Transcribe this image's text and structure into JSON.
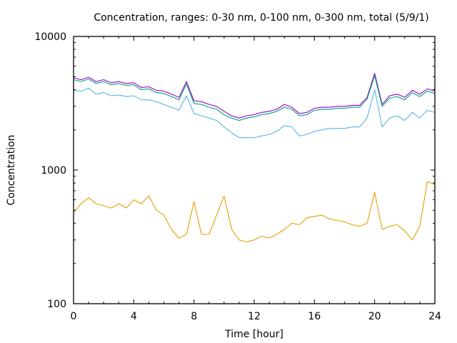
{
  "chart_data": {
    "type": "line",
    "title": "Concentration, ranges: 0-30 nm, 0-100 nm, 0-300 nm, total (5/9/1)",
    "xlabel": "Time [hour]",
    "ylabel": "Concentration",
    "xlim": [
      0,
      24
    ],
    "ylim": [
      100,
      10000
    ],
    "yscale": "log",
    "grid": false,
    "legend": "none",
    "x_ticks": [
      0,
      4,
      8,
      12,
      16,
      20,
      24
    ],
    "x_tick_labels": [
      "0",
      "4",
      "8",
      "12",
      "16",
      "20",
      "24"
    ],
    "y_ticks": [
      100,
      1000,
      10000
    ],
    "y_tick_labels": [
      "100",
      "1000",
      "10000"
    ],
    "x": [
      0,
      0.5,
      1,
      1.5,
      2,
      2.5,
      3,
      3.5,
      4,
      4.5,
      5,
      5.5,
      6,
      6.5,
      7,
      7.5,
      8,
      8.5,
      9,
      9.5,
      10,
      10.5,
      11,
      11.5,
      12,
      12.5,
      13,
      13.5,
      14,
      14.5,
      15,
      15.5,
      16,
      16.5,
      17,
      17.5,
      18,
      18.5,
      19,
      19.5,
      20,
      20.5,
      21,
      21.5,
      22,
      22.5,
      23,
      23.5,
      24
    ],
    "series": [
      {
        "name": "total",
        "color": "#9400d3",
        "values": [
          4900,
          4750,
          4950,
          4600,
          4750,
          4500,
          4600,
          4450,
          4500,
          4150,
          4200,
          3950,
          3900,
          3700,
          3500,
          4600,
          3300,
          3250,
          3100,
          3000,
          2750,
          2550,
          2450,
          2550,
          2600,
          2700,
          2750,
          2850,
          3100,
          2950,
          2650,
          2700,
          2900,
          2950,
          2950,
          3000,
          3000,
          3050,
          3050,
          3500,
          5300,
          3100,
          3600,
          3700,
          3500,
          3950,
          3700,
          4050,
          3900
        ]
      },
      {
        "name": "0-300 nm",
        "color": "#009e73",
        "values": [
          4750,
          4600,
          4800,
          4450,
          4600,
          4350,
          4450,
          4300,
          4350,
          4000,
          4050,
          3800,
          3750,
          3550,
          3350,
          4400,
          3150,
          3100,
          2950,
          2850,
          2600,
          2450,
          2350,
          2450,
          2500,
          2600,
          2650,
          2750,
          2950,
          2850,
          2550,
          2600,
          2800,
          2850,
          2850,
          2900,
          2900,
          2950,
          2950,
          3400,
          5100,
          3000,
          3450,
          3550,
          3350,
          3800,
          3550,
          3900,
          3750
        ]
      },
      {
        "name": "0-100 nm",
        "color": "#56b4e9",
        "values": [
          3950,
          3900,
          4100,
          3700,
          3800,
          3600,
          3650,
          3550,
          3600,
          3350,
          3350,
          3250,
          3100,
          2950,
          2800,
          3600,
          2650,
          2550,
          2450,
          2350,
          2100,
          1900,
          1750,
          1750,
          1750,
          1800,
          1850,
          1950,
          2150,
          2100,
          1800,
          1850,
          1950,
          2000,
          2050,
          2050,
          2050,
          2100,
          2100,
          2450,
          4000,
          2100,
          2450,
          2550,
          2350,
          2700,
          2450,
          2800,
          2700
        ]
      },
      {
        "name": "0-30 nm",
        "color": "#e69f00",
        "values": [
          480,
          560,
          620,
          560,
          540,
          520,
          560,
          520,
          600,
          560,
          640,
          500,
          460,
          360,
          310,
          330,
          580,
          330,
          330,
          460,
          640,
          360,
          300,
          290,
          300,
          320,
          310,
          330,
          360,
          400,
          390,
          440,
          450,
          460,
          430,
          420,
          410,
          390,
          380,
          400,
          680,
          360,
          380,
          390,
          350,
          300,
          380,
          820,
          780
        ]
      }
    ]
  }
}
